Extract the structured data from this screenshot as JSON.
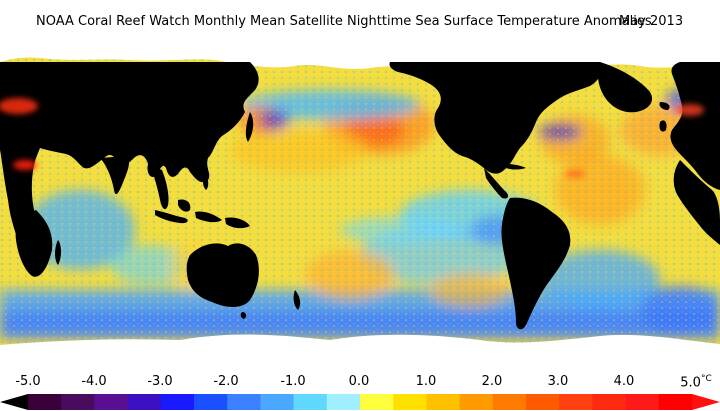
{
  "title": "NOAA Coral Reef Watch Monthly Mean Satellite Nighttime Sea Surface Temperature Anomalies",
  "date": "May 2013",
  "legend": {
    "unit": "°C",
    "ticks": [
      "-5.0",
      "-4.0",
      "-3.0",
      "-2.0",
      "-1.0",
      "0.0",
      "1.0",
      "2.0",
      "3.0",
      "4.0",
      "5.0"
    ],
    "colors": [
      "#3a003a",
      "#4a0a5e",
      "#5a1090",
      "#3a10c0",
      "#1a1aff",
      "#1a50ff",
      "#3a80ff",
      "#4aa8ff",
      "#60d8ff",
      "#a0f0ff",
      "#ffff40",
      "#ffe000",
      "#ffc000",
      "#ff9a00",
      "#ff7a00",
      "#ff5a00",
      "#ff4010",
      "#ff2a10",
      "#ff1a1a",
      "#ff0000"
    ],
    "left_arrow_color": "#000000",
    "right_arrow_color": "#ff1010"
  },
  "map": {
    "land_color": "#000000",
    "ice_color": "#ffffff",
    "ocean_base_color": "#f6e03a"
  }
}
